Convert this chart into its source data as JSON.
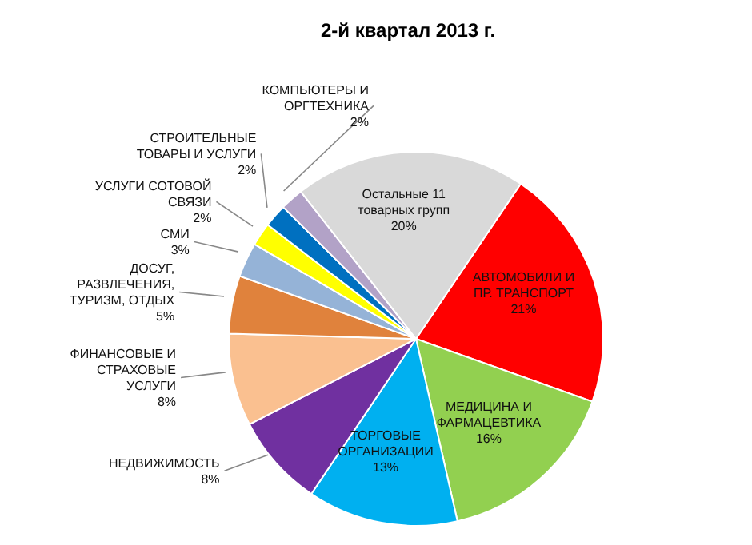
{
  "chart_data": {
    "type": "pie",
    "title": "2-й квартал 2013 г.",
    "categories": [
      "АВТОМОБИЛИ И ПР. ТРАНСПОРТ",
      "МЕДИЦИНА И ФАРМАЦЕВТИКА",
      "ТОРГОВЫЕ ОРГАНИЗАЦИИ",
      "НЕДВИЖИМОСТЬ",
      "ФИНАНСОВЫЕ И СТРАХОВЫЕ УСЛУГИ",
      "ДОСУГ, РАЗВЛЕЧЕНИЯ, ТУРИЗМ, ОТДЫХ",
      "СМИ",
      "УСЛУГИ СОТОВОЙ СВЯЗИ",
      "СТРОИТЕЛЬНЫЕ ТОВАРЫ И УСЛУГИ",
      "КОМПЬЮТЕРЫ И ОРГТЕХНИКА",
      "Остальные 11 товарных групп"
    ],
    "values": [
      21,
      16,
      13,
      8,
      8,
      5,
      3,
      2,
      2,
      2,
      20
    ],
    "value_labels": [
      "21%",
      "16%",
      "13%",
      "8%",
      "8%",
      "5%",
      "3%",
      "2%",
      "2%",
      "2%",
      "20%"
    ],
    "colors": [
      "#ff0000",
      "#92d050",
      "#00b0f0",
      "#7030a0",
      "#fac090",
      "#e0823c",
      "#95b3d7",
      "#ffff00",
      "#0070c0",
      "#b2a2c7",
      "#d9d9d9"
    ]
  }
}
